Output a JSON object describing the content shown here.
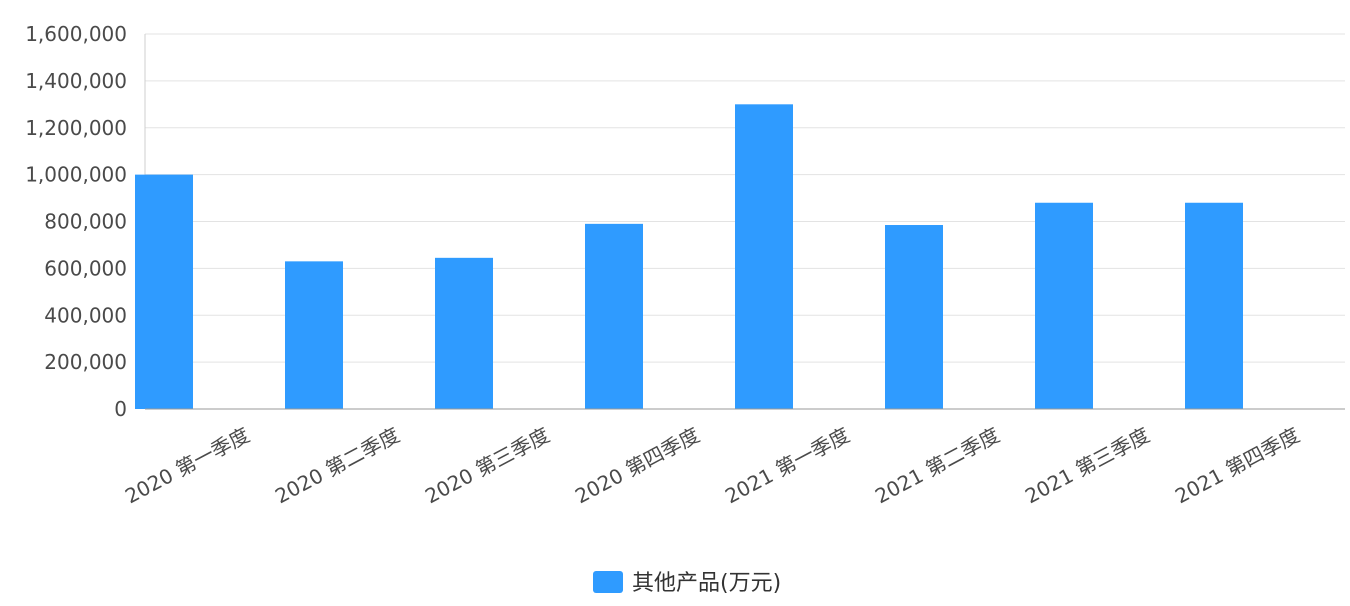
{
  "chart_data": {
    "type": "bar",
    "title": "",
    "xlabel": "",
    "ylabel": "",
    "categories": [
      "2020 第一季度",
      "2020 第二季度",
      "2020 第三季度",
      "2020 第四季度",
      "2021 第一季度",
      "2021 第二季度",
      "2021 第三季度",
      "2021 第四季度"
    ],
    "series": [
      {
        "name": "其他产品(万元)",
        "color": "#2f9bff",
        "values": [
          1000000,
          630000,
          645000,
          790000,
          1300000,
          785000,
          880000,
          880000
        ]
      }
    ],
    "ylim": [
      0,
      1600000
    ],
    "yticks": [
      "0",
      "200,000",
      "400,000",
      "600,000",
      "800,000",
      "1,000,000",
      "1,200,000",
      "1,400,000",
      "1,600,000"
    ],
    "ytick_values": [
      0,
      200000,
      400000,
      600000,
      800000,
      1000000,
      1200000,
      1400000,
      1600000
    ],
    "grid": true,
    "legend_position": "bottom"
  }
}
